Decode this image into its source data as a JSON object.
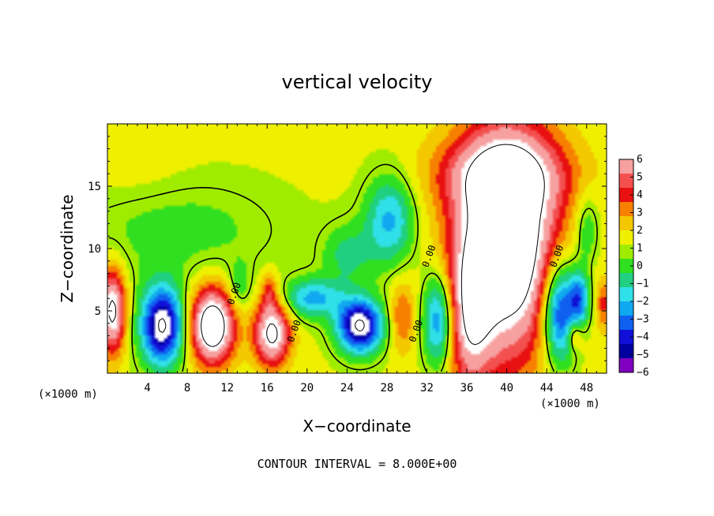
{
  "chart_data": {
    "type": "heatmap",
    "title": "vertical velocity",
    "xlabel": "X−coordinate",
    "ylabel": "Z−coordinate",
    "x_unit_left": "(×1000 m)",
    "x_unit_right": "(×1000 m)",
    "xlim": [
      0,
      50
    ],
    "ylim": [
      0,
      20
    ],
    "xticks": [
      4,
      8,
      12,
      16,
      20,
      24,
      28,
      32,
      36,
      40,
      44,
      48
    ],
    "xtick_labels": [
      "4",
      "8",
      "12",
      "16",
      "20",
      "24",
      "28",
      "32",
      "36",
      "40",
      "44",
      "48"
    ],
    "yticks": [
      5,
      10,
      15
    ],
    "ytick_labels": [
      "5",
      "10",
      "15"
    ],
    "colorbar": {
      "levels": [
        6,
        5,
        4,
        3,
        2,
        1,
        0,
        -1,
        -2,
        -3,
        -4,
        -5,
        -6
      ],
      "labels": [
        "6",
        "5",
        "4",
        "3",
        "2",
        "1",
        "0",
        "−1",
        "−2",
        "−3",
        "−4",
        "−5",
        "−6"
      ],
      "colors": [
        "#f7a0a0",
        "#f45050",
        "#e81010",
        "#f88000",
        "#f4c800",
        "#eef000",
        "#a0ec00",
        "#30e020",
        "#20d080",
        "#30e0e8",
        "#10a8f0",
        "#1060f0",
        "#1010d8",
        "#0000a0",
        "#8000c0"
      ]
    },
    "contour_interval_text": "CONTOUR INTERVAL = 8.000E+00",
    "contour_labels": [
      {
        "text": "0.00",
        "x": 13.0,
        "z": 6.3
      },
      {
        "text": "0.00",
        "x": 19.0,
        "z": 3.3
      },
      {
        "text": "0.00",
        "x": 31.2,
        "z": 3.3
      },
      {
        "text": "0.00",
        "x": 32.5,
        "z": 9.3
      },
      {
        "text": "0.00",
        "x": 45.3,
        "z": 9.3
      }
    ],
    "cells": [
      {
        "x": 0.5,
        "z": 5,
        "rx": 1.3,
        "rz": 3.3,
        "w": 8
      },
      {
        "x": 5.5,
        "z": 3.8,
        "rx": 2.2,
        "rz": 3.2,
        "w": -9
      },
      {
        "x": 10.5,
        "z": 3.8,
        "rx": 2.2,
        "rz": 3.0,
        "w": 10
      },
      {
        "x": 13.2,
        "z": 6.8,
        "rx": 1.2,
        "rz": 2.0,
        "w": -2
      },
      {
        "x": 16.5,
        "z": 3.2,
        "rx": 1.8,
        "rz": 2.6,
        "w": 8
      },
      {
        "x": 16.2,
        "z": 6.5,
        "rx": 0.8,
        "rz": 1.5,
        "w": 3
      },
      {
        "x": 20.5,
        "z": 6.0,
        "rx": 3.0,
        "rz": 1.6,
        "w": -4.5
      },
      {
        "x": 25.3,
        "z": 3.8,
        "rx": 2.3,
        "rz": 2.2,
        "w": -9
      },
      {
        "x": 28.3,
        "z": 12.3,
        "rx": 2.5,
        "rz": 3.6,
        "w": -4.5
      },
      {
        "x": 24.0,
        "z": 9.5,
        "rx": 2.5,
        "rz": 2.5,
        "w": -2.5
      },
      {
        "x": 29.5,
        "z": 4.5,
        "rx": 1.3,
        "rz": 2.8,
        "w": 3
      },
      {
        "x": 33.2,
        "z": 4.3,
        "rx": 1.6,
        "rz": 3.8,
        "w": -6
      },
      {
        "x": 36.3,
        "z": 4.5,
        "rx": 2.2,
        "rz": 6.0,
        "w": 5
      },
      {
        "x": 40.0,
        "z": 10.5,
        "rx": 5.0,
        "rz": 9.0,
        "w": 11
      },
      {
        "x": 39.5,
        "z": 16.0,
        "rx": 7.0,
        "rz": 3.0,
        "w": 4
      },
      {
        "x": 45.3,
        "z": 5.0,
        "rx": 1.8,
        "rz": 4.2,
        "w": -8
      },
      {
        "x": 47.3,
        "z": 6.0,
        "rx": 1.0,
        "rz": 2.2,
        "w": -5
      },
      {
        "x": 48.0,
        "z": 11.5,
        "rx": 1.2,
        "rz": 3.0,
        "w": -2.5
      },
      {
        "x": 46.8,
        "z": 3.0,
        "rx": 0.8,
        "rz": 1.2,
        "w": 3
      },
      {
        "x": 49.7,
        "z": 5.5,
        "rx": 0.7,
        "rz": 2.0,
        "w": 3
      },
      {
        "x": 7.0,
        "z": 11.5,
        "rx": 10.0,
        "rz": 4.0,
        "w": -1.7
      },
      {
        "x": 3.0,
        "z": 16.0,
        "rx": 5.0,
        "rz": 3.0,
        "w": 0.5
      }
    ]
  }
}
